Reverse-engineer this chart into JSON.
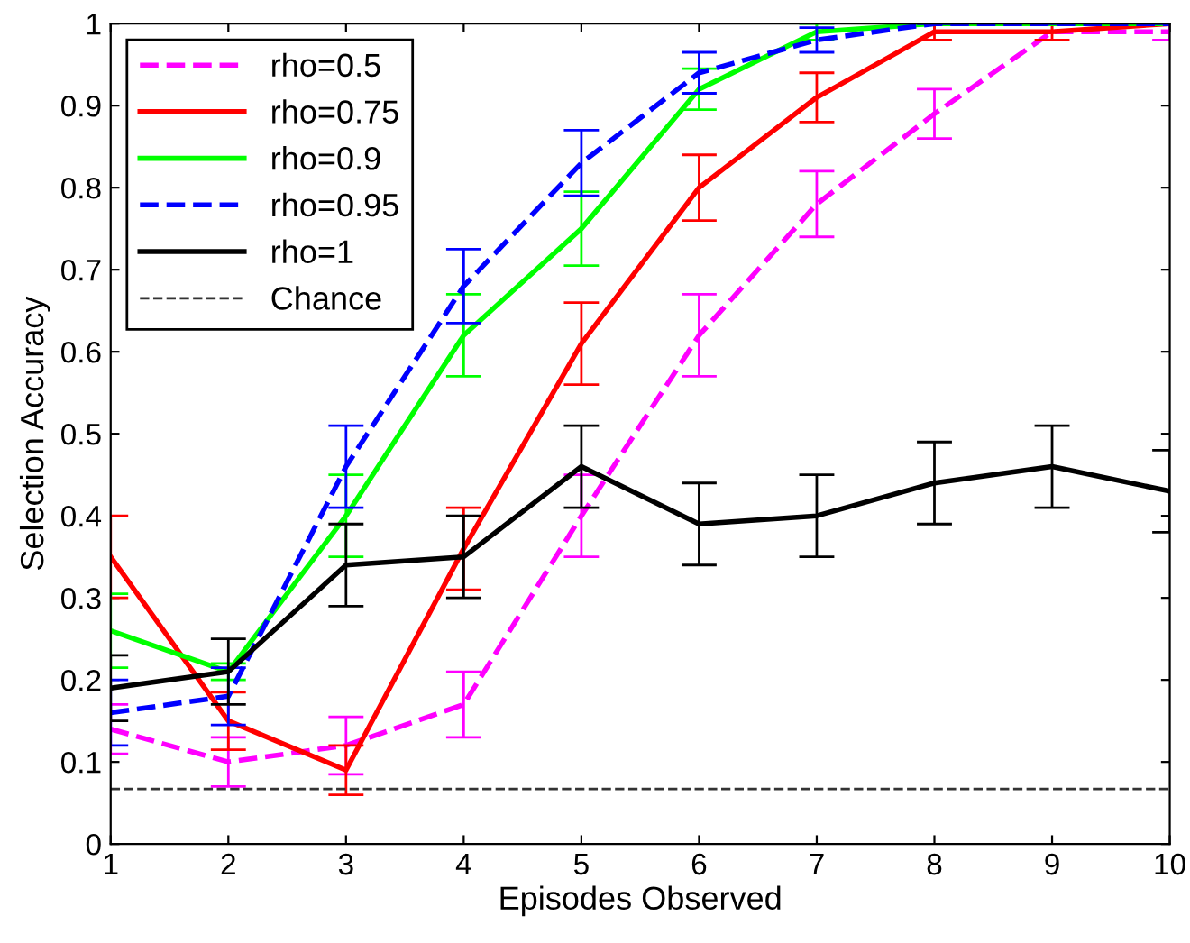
{
  "chart_data": {
    "type": "line",
    "xlabel": "Episodes Observed",
    "ylabel": "Selection Accuracy",
    "x": [
      1,
      2,
      3,
      4,
      5,
      6,
      7,
      8,
      9,
      10
    ],
    "xlim": [
      1,
      10
    ],
    "xticks": [
      1,
      2,
      3,
      4,
      5,
      6,
      7,
      8,
      9,
      10
    ],
    "ylim": [
      0,
      1
    ],
    "yticks": [
      0,
      0.1,
      0.2,
      0.3,
      0.4,
      0.5,
      0.6,
      0.7,
      0.8,
      0.9,
      1
    ],
    "grid": false,
    "legend": "top left",
    "series": [
      {
        "name": "rho=0.5",
        "color": "#ff00ff",
        "line_style": "dashed",
        "values": [
          0.14,
          0.1,
          0.12,
          0.17,
          0.4,
          0.62,
          0.78,
          0.89,
          0.99,
          0.99
        ],
        "errors": [
          0.03,
          0.03,
          0.035,
          0.04,
          0.05,
          0.05,
          0.04,
          0.03,
          null,
          0.01
        ]
      },
      {
        "name": "rho=0.75",
        "color": "#ff0000",
        "line_style": "solid",
        "values": [
          0.35,
          0.15,
          0.09,
          0.36,
          0.61,
          0.8,
          0.91,
          0.99,
          0.99,
          1.0
        ],
        "errors": [
          0.05,
          0.035,
          0.03,
          0.05,
          0.05,
          0.04,
          0.03,
          0.01,
          0.01,
          0
        ]
      },
      {
        "name": "rho=0.9",
        "color": "#00ff00",
        "line_style": "solid",
        "values": [
          0.26,
          0.21,
          0.4,
          0.62,
          0.75,
          0.92,
          0.99,
          1.0,
          1.0,
          1.0
        ],
        "errors": [
          0.045,
          0.01,
          0.05,
          0.05,
          0.045,
          0.025,
          0.01,
          0,
          0,
          0
        ]
      },
      {
        "name": "rho=0.95",
        "color": "#0000ff",
        "line_style": "dashed",
        "values": [
          0.16,
          0.18,
          0.46,
          0.68,
          0.83,
          0.94,
          0.98,
          1.0,
          1.0,
          1.0
        ],
        "errors": [
          0.04,
          0.035,
          0.05,
          0.045,
          0.04,
          0.025,
          0.015,
          0,
          0,
          0
        ]
      },
      {
        "name": "rho=1",
        "color": "#000000",
        "line_style": "solid",
        "values": [
          0.19,
          0.21,
          0.34,
          0.35,
          0.46,
          0.39,
          0.4,
          0.44,
          0.46,
          0.43
        ],
        "errors": [
          0.04,
          0.04,
          0.05,
          0.05,
          0.05,
          0.05,
          0.05,
          0.05,
          0.05,
          0.05
        ]
      }
    ],
    "ref_lines": [
      {
        "axis": "y",
        "value": 0.067,
        "label": "Chance",
        "color": "#333333",
        "line_style": "dashed"
      }
    ]
  }
}
